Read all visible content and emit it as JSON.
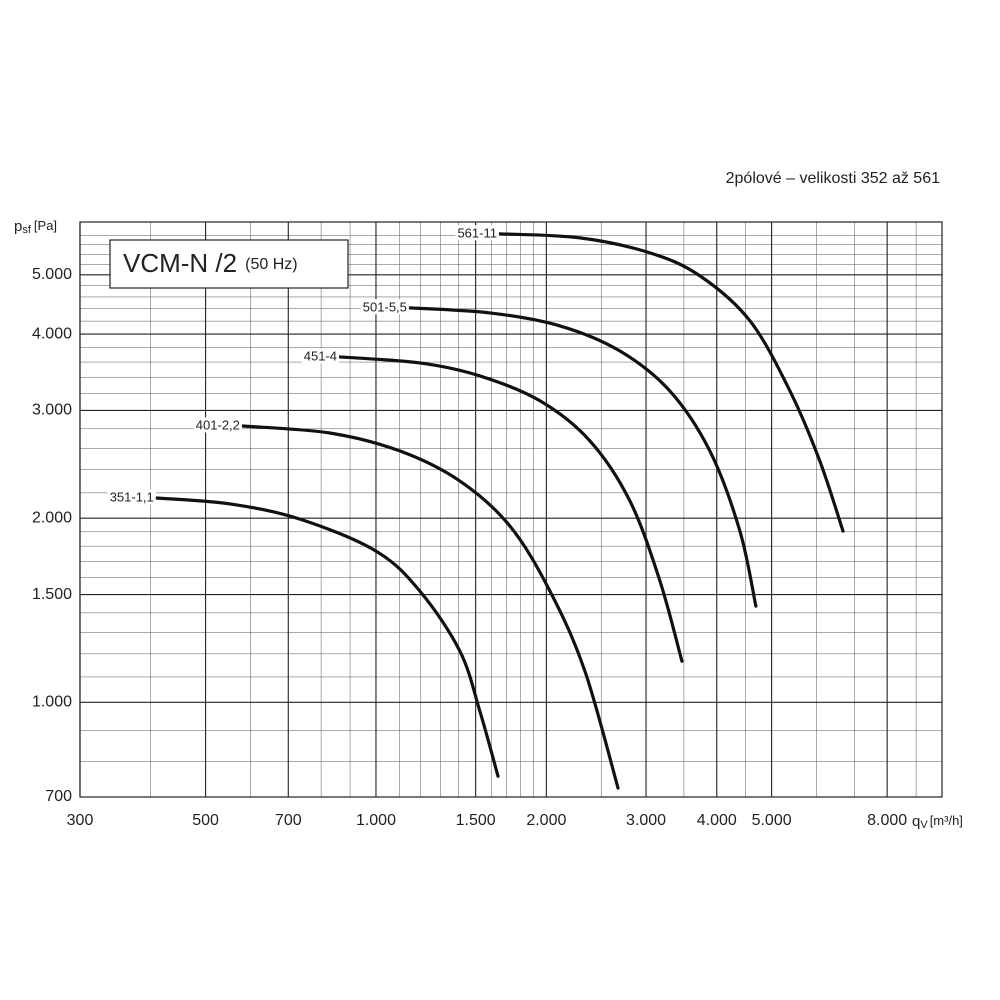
{
  "chart_data": {
    "type": "line",
    "subtitle": "2pólové – velikosti 352 až 561",
    "title": "VCM-N /2",
    "title_note": "(50 Hz)",
    "y_label": {
      "symbol": "p",
      "subscript": "sf",
      "unit": "[Pa]"
    },
    "x_label": {
      "symbol": "q",
      "subscript": "V",
      "unit": "[m³/h]"
    },
    "log_x": true,
    "log_y": true,
    "grid": true,
    "xlim": [
      300,
      10000
    ],
    "ylim": [
      700,
      6100
    ],
    "xticks": [
      300,
      500,
      700,
      {
        "value": 1000,
        "label": "1.000"
      },
      {
        "value": 1500,
        "label": "1.500"
      },
      {
        "value": 2000,
        "label": "2.000"
      },
      {
        "value": 3000,
        "label": "3.000"
      },
      {
        "value": 4000,
        "label": "4.000"
      },
      {
        "value": 5000,
        "label": "5.000"
      },
      {
        "value": 8000,
        "label": "8.000"
      }
    ],
    "yticks": [
      700,
      {
        "value": 1000,
        "label": "1.000"
      },
      {
        "value": 1500,
        "label": "1.500"
      },
      {
        "value": 2000,
        "label": "2.000"
      },
      {
        "value": 3000,
        "label": "3.000"
      },
      {
        "value": 4000,
        "label": "4.000"
      },
      {
        "value": 5000,
        "label": "5.000"
      }
    ],
    "minor_xticks": [
      400,
      600,
      800,
      900,
      1100,
      1200,
      1300,
      1400,
      1600,
      1700,
      1800,
      1900,
      2500,
      3500,
      4500,
      6000,
      7000,
      9000
    ],
    "minor_yticks": [
      800,
      900,
      1100,
      1200,
      1300,
      1400,
      1600,
      1700,
      1800,
      1900,
      2200,
      2400,
      2600,
      2800,
      3200,
      3400,
      3600,
      3800,
      4200,
      4400,
      4600,
      4800,
      5200,
      5400,
      5600,
      5800
    ],
    "series": [
      {
        "name": "351-1,1",
        "color": "#111111",
        "x": [
          410,
          552,
          734,
          1000,
          1196,
          1407,
          1526,
          1643
        ],
        "values": [
          2158,
          2110,
          1993,
          1767,
          1519,
          1212,
          967,
          757
        ]
      },
      {
        "name": "401-2,2",
        "color": "#111111",
        "x": [
          582,
          829,
          1103,
          1407,
          1724,
          2030,
          2340,
          2677
        ],
        "values": [
          2830,
          2756,
          2575,
          2300,
          1942,
          1519,
          1124,
          724
        ]
      },
      {
        "name": "451-4",
        "color": "#111111",
        "x": [
          864,
          1196,
          1526,
          1950,
          2388,
          2810,
          3175,
          3472
        ],
        "values": [
          3670,
          3588,
          3417,
          3110,
          2675,
          2133,
          1578,
          1167
        ]
      },
      {
        "name": "501-5,5",
        "color": "#111111",
        "x": [
          1148,
          1590,
          2114,
          2698,
          3306,
          3890,
          4395,
          4690
        ],
        "values": [
          4415,
          4332,
          4125,
          3753,
          3228,
          2575,
          1905,
          1436
        ]
      },
      {
        "name": "561-11",
        "color": "#111111",
        "x": [
          1656,
          2293,
          3048,
          3736,
          4580,
          5388,
          6085,
          6685
        ],
        "values": [
          5834,
          5746,
          5431,
          4980,
          4203,
          3228,
          2479,
          1905
        ]
      }
    ]
  }
}
